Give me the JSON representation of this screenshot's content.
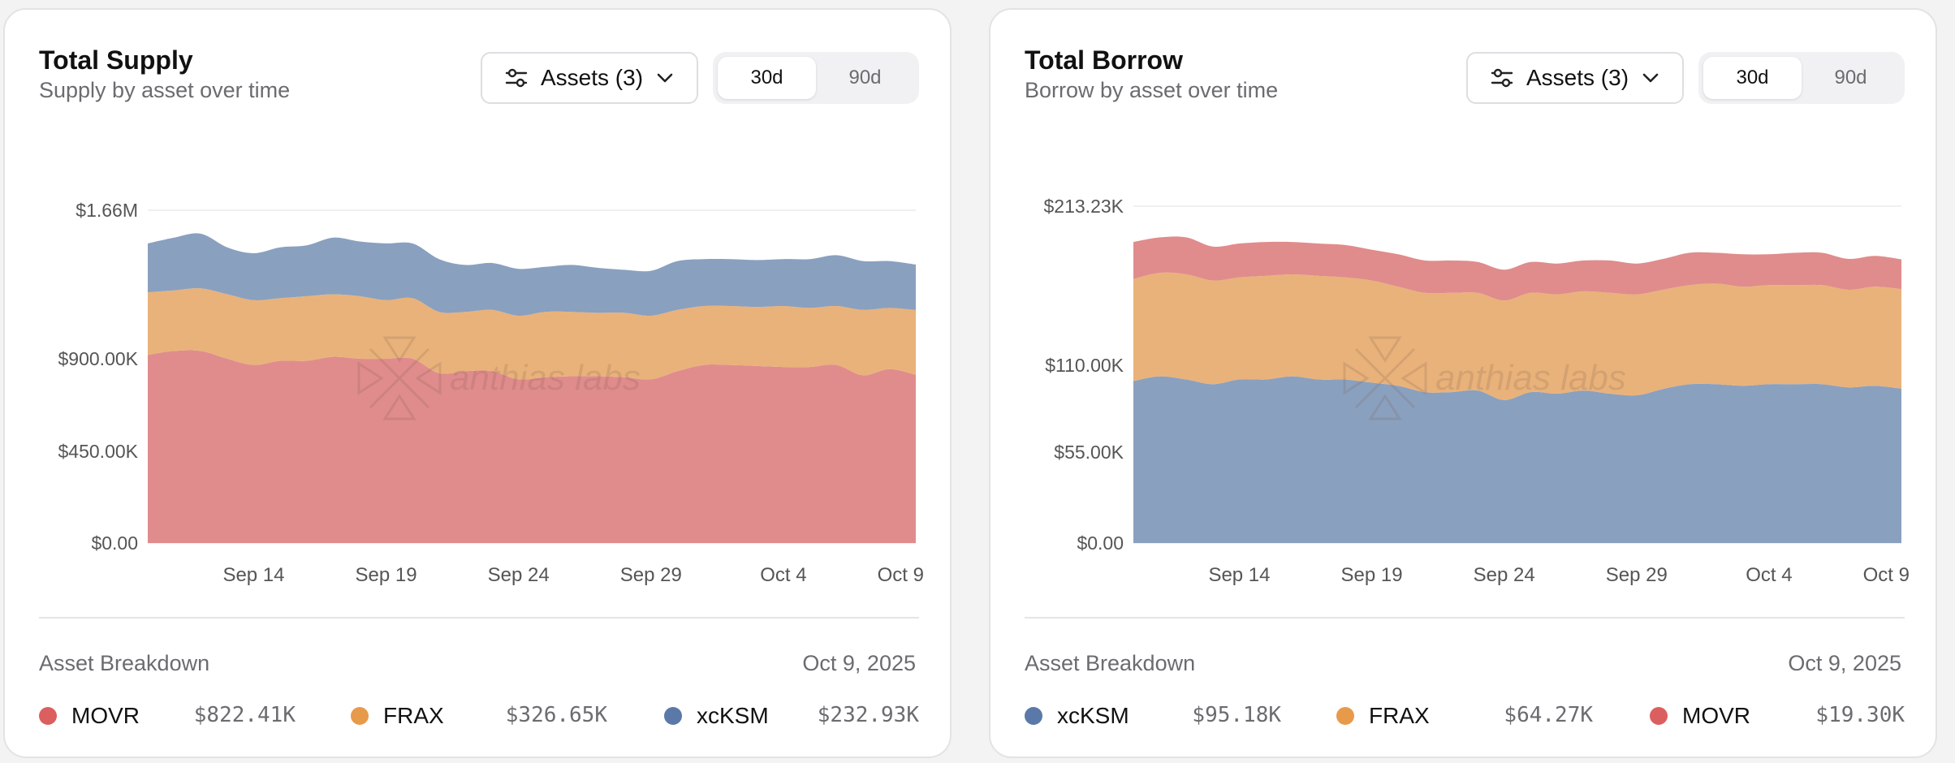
{
  "colors": {
    "movr": "#e08c8c",
    "frax": "#e9b27a",
    "xcksm": "#8aa0bf",
    "movr_dot": "#dc5f5f",
    "frax_dot": "#e89a4b",
    "xcksm_dot": "#5b79a8"
  },
  "watermark": "anthias labs",
  "supply": {
    "title": "Total Supply",
    "subtitle": "Supply by asset over time",
    "assets_label": "Assets (3)",
    "range_options": [
      "30d",
      "90d"
    ],
    "active_range": "30d",
    "breakdown_title": "Asset Breakdown",
    "breakdown_date": "Oct 9, 2025",
    "legend": [
      {
        "name": "MOVR",
        "value": "$822.41K",
        "color": "#dc5f5f"
      },
      {
        "name": "FRAX",
        "value": "$326.65K",
        "color": "#e89a4b"
      },
      {
        "name": "xcKSM",
        "value": "$232.93K",
        "color": "#5b79a8"
      }
    ]
  },
  "borrow": {
    "title": "Total Borrow",
    "subtitle": "Borrow by asset over time",
    "assets_label": "Assets (3)",
    "range_options": [
      "30d",
      "90d"
    ],
    "active_range": "30d",
    "breakdown_title": "Asset Breakdown",
    "breakdown_date": "Oct 9, 2025",
    "legend": [
      {
        "name": "xcKSM",
        "value": "$95.18K",
        "color": "#5b79a8"
      },
      {
        "name": "FRAX",
        "value": "$64.27K",
        "color": "#e89a4b"
      },
      {
        "name": "MOVR",
        "value": "$19.30K",
        "color": "#dc5f5f"
      }
    ]
  },
  "chart_data": [
    {
      "type": "area",
      "stacked": true,
      "title": "Total Supply",
      "x": [
        "Sep 10",
        "Sep 11",
        "Sep 12",
        "Sep 13",
        "Sep 14",
        "Sep 15",
        "Sep 16",
        "Sep 17",
        "Sep 18",
        "Sep 19",
        "Sep 20",
        "Sep 21",
        "Sep 22",
        "Sep 23",
        "Sep 24",
        "Sep 25",
        "Sep 26",
        "Sep 27",
        "Sep 28",
        "Sep 29",
        "Sep 30",
        "Oct 1",
        "Oct 2",
        "Oct 3",
        "Oct 4",
        "Oct 5",
        "Oct 6",
        "Oct 7",
        "Oct 8",
        "Oct 9"
      ],
      "x_ticks": [
        "Sep 14",
        "Sep 19",
        "Sep 24",
        "Sep 29",
        "Oct 4",
        "Oct 9"
      ],
      "y_ticks": [
        "$0.00",
        "$450.00K",
        "$900.00K",
        "$1.66M"
      ],
      "y_tick_values": [
        0,
        450000,
        900000,
        1660000
      ],
      "ylim": [
        0,
        1660000
      ],
      "grid": true,
      "series": [
        {
          "name": "MOVR",
          "values": [
            920000,
            940000,
            940000,
            900000,
            870000,
            890000,
            890000,
            910000,
            900000,
            900000,
            900000,
            830000,
            840000,
            840000,
            800000,
            810000,
            815000,
            815000,
            810000,
            800000,
            840000,
            870000,
            870000,
            865000,
            860000,
            860000,
            870000,
            820000,
            850000,
            822410
          ]
        },
        {
          "name": "FRAX",
          "values": [
            320000,
            310000,
            320000,
            330000,
            330000,
            320000,
            330000,
            320000,
            320000,
            300000,
            310000,
            310000,
            300000,
            310000,
            320000,
            330000,
            325000,
            320000,
            325000,
            320000,
            310000,
            300000,
            300000,
            300000,
            310000,
            300000,
            300000,
            330000,
            310000,
            326650
          ]
        },
        {
          "name": "xcKSM",
          "values": [
            250000,
            270000,
            280000,
            240000,
            240000,
            260000,
            260000,
            290000,
            280000,
            290000,
            280000,
            270000,
            240000,
            240000,
            240000,
            230000,
            240000,
            230000,
            220000,
            230000,
            250000,
            240000,
            240000,
            240000,
            240000,
            250000,
            260000,
            250000,
            240000,
            232930
          ]
        }
      ]
    },
    {
      "type": "area",
      "stacked": true,
      "title": "Total Borrow",
      "x": [
        "Sep 10",
        "Sep 11",
        "Sep 12",
        "Sep 13",
        "Sep 14",
        "Sep 15",
        "Sep 16",
        "Sep 17",
        "Sep 18",
        "Sep 19",
        "Sep 20",
        "Sep 21",
        "Sep 22",
        "Sep 23",
        "Sep 24",
        "Sep 25",
        "Sep 26",
        "Sep 27",
        "Sep 28",
        "Sep 29",
        "Sep 30",
        "Oct 1",
        "Oct 2",
        "Oct 3",
        "Oct 4",
        "Oct 5",
        "Oct 6",
        "Oct 7",
        "Oct 8",
        "Oct 9"
      ],
      "x_ticks": [
        "Sep 14",
        "Sep 19",
        "Sep 24",
        "Sep 29",
        "Oct 4",
        "Oct 9"
      ],
      "y_ticks": [
        "$0.00",
        "$55.00K",
        "$110.00K",
        "$213.23K"
      ],
      "y_tick_values": [
        0,
        55000,
        110000,
        213230
      ],
      "ylim": [
        0,
        213230
      ],
      "grid": true,
      "series": [
        {
          "name": "xcKSM",
          "values": [
            100000,
            103000,
            101000,
            98000,
            101000,
            101000,
            103000,
            101000,
            101000,
            99000,
            97000,
            93000,
            93000,
            94000,
            88000,
            93000,
            92000,
            94000,
            92000,
            91000,
            95000,
            98000,
            98000,
            97000,
            98000,
            98000,
            98000,
            96000,
            97000,
            95180
          ]
        },
        {
          "name": "FRAX",
          "values": [
            66000,
            67000,
            68000,
            67000,
            66000,
            67000,
            66000,
            67000,
            66000,
            66000,
            64000,
            64000,
            64000,
            63000,
            64000,
            64000,
            64000,
            64000,
            65000,
            65000,
            64000,
            64000,
            65000,
            64000,
            64000,
            64000,
            64000,
            63000,
            64000,
            64270
          ]
        },
        {
          "name": "MOVR",
          "values": [
            24000,
            23000,
            24000,
            22000,
            22000,
            22000,
            21000,
            21000,
            21000,
            20000,
            21000,
            21000,
            21000,
            20000,
            20000,
            20000,
            20000,
            20000,
            21000,
            20000,
            20000,
            21000,
            20000,
            21000,
            20000,
            21000,
            21000,
            20000,
            20000,
            19300
          ]
        }
      ]
    }
  ]
}
